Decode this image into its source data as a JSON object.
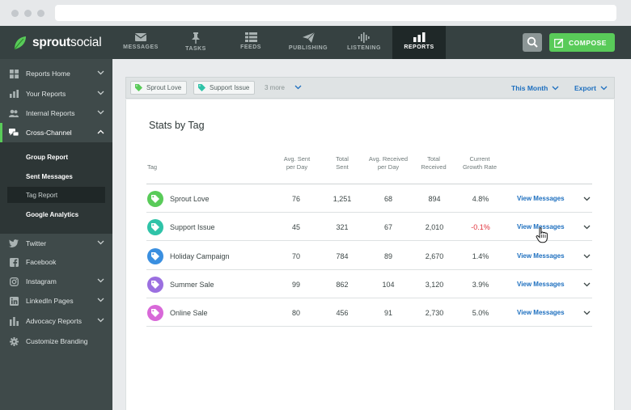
{
  "app": {
    "logo_bold": "sprout",
    "logo_light": "social"
  },
  "topnav": {
    "items": [
      {
        "label": "MESSAGES",
        "icon": "envelope-icon"
      },
      {
        "label": "TASKS",
        "icon": "pin-icon"
      },
      {
        "label": "FEEDS",
        "icon": "list-icon"
      },
      {
        "label": "PUBLISHING",
        "icon": "paper-plane-icon"
      },
      {
        "label": "LISTENING",
        "icon": "waveform-icon"
      },
      {
        "label": "REPORTS",
        "icon": "bar-chart-icon",
        "active": true
      }
    ],
    "compose_label": "COMPOSE"
  },
  "sidebar": {
    "items": [
      {
        "label": "Reports Home",
        "icon": "grid-icon"
      },
      {
        "label": "Your Reports",
        "icon": "bar-chart-icon"
      },
      {
        "label": "Internal Reports",
        "icon": "users-icon"
      },
      {
        "label": "Cross-Channel",
        "icon": "chat-icon",
        "active": true
      },
      {
        "label": "Twitter",
        "icon": "twitter-icon"
      },
      {
        "label": "Facebook",
        "icon": "facebook-icon"
      },
      {
        "label": "Instagram",
        "icon": "instagram-icon"
      },
      {
        "label": "LinkedIn Pages",
        "icon": "linkedin-icon"
      },
      {
        "label": "Advocacy Reports",
        "icon": "advocacy-icon"
      },
      {
        "label": "Customize Branding",
        "icon": "gear-icon"
      }
    ],
    "sub_items": [
      {
        "label": "Group Report"
      },
      {
        "label": "Sent Messages"
      },
      {
        "label": "Tag Report",
        "active": true
      },
      {
        "label": "Google Analytics"
      }
    ]
  },
  "filters": {
    "pills": [
      {
        "label": "Sprout Love",
        "color": "#59cb59"
      },
      {
        "label": "Support Issue",
        "color": "#2fc3a8"
      }
    ],
    "more": "3 more",
    "date_range": "This Month",
    "export": "Export"
  },
  "card": {
    "title": "Stats by Tag",
    "columns": {
      "tag": "Tag",
      "avg_sent_1": "Avg. Sent",
      "avg_sent_2": "per Day",
      "total_sent_1": "Total",
      "total_sent_2": "Sent",
      "avg_recv_1": "Avg. Received",
      "avg_recv_2": "per Day",
      "total_recv_1": "Total",
      "total_recv_2": "Received",
      "growth_1": "Current",
      "growth_2": "Growth Rate"
    },
    "rows": [
      {
        "tag": "Sprout Love",
        "color": "#59cb59",
        "avg_sent": "76",
        "total_sent": "1,251",
        "avg_recv": "68",
        "total_recv": "894",
        "growth": "4.8%",
        "negative": false,
        "link": "View Messages"
      },
      {
        "tag": "Support Issue",
        "color": "#2fc3a8",
        "avg_sent": "45",
        "total_sent": "321",
        "avg_recv": "67",
        "total_recv": "2,010",
        "growth": "-0.1%",
        "negative": true,
        "link": "View Messages"
      },
      {
        "tag": "Holiday Campaign",
        "color": "#3a8fe0",
        "avg_sent": "70",
        "total_sent": "784",
        "avg_recv": "89",
        "total_recv": "2,670",
        "growth": "1.4%",
        "negative": false,
        "link": "View Messages"
      },
      {
        "tag": "Summer Sale",
        "color": "#9b6fe0",
        "avg_sent": "99",
        "total_sent": "862",
        "avg_recv": "104",
        "total_recv": "3,120",
        "growth": "3.9%",
        "negative": false,
        "link": "View Messages"
      },
      {
        "tag": "Online Sale",
        "color": "#d868d8",
        "avg_sent": "80",
        "total_sent": "456",
        "avg_recv": "91",
        "total_recv": "2,730",
        "growth": "5.0%",
        "negative": false,
        "link": "View Messages"
      }
    ]
  }
}
